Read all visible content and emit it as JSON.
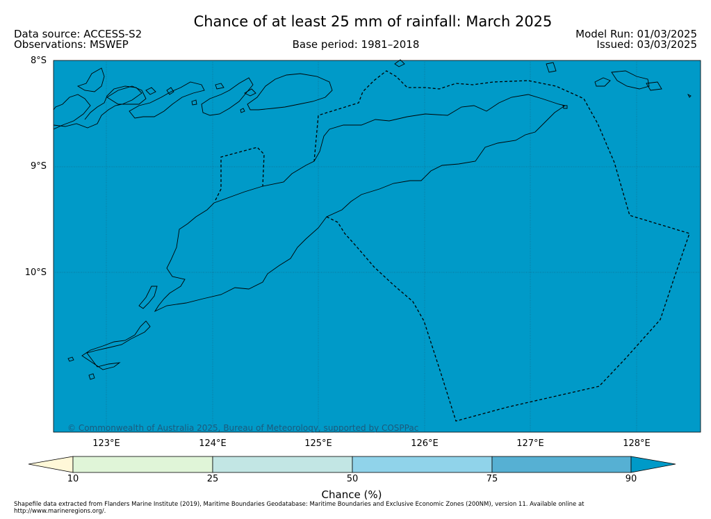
{
  "title": "Chance of at least 25 mm of rainfall: March 2025",
  "header": {
    "data_source": "Data source: ACCESS-S2",
    "observations": "Observations: MSWEP",
    "base_period": "Base period: 1981–2018",
    "model_run": "Model Run: 01/03/2025",
    "issued": "Issued: 03/03/2025"
  },
  "map": {
    "background_color": "#009ac8",
    "lat_labels": [
      "8°S",
      "9°S",
      "10°S"
    ],
    "lon_labels": [
      "123°E",
      "124°E",
      "125°E",
      "126°E",
      "127°E",
      "128°E"
    ],
    "copyright": "© Commonwealth of Australia 2025, Bureau of Meteorology, supported by COSPPac"
  },
  "colorbar": {
    "label": "Chance (%)",
    "ticks": [
      "10",
      "25",
      "50",
      "75",
      "90"
    ],
    "colors": [
      "#fff8d8",
      "#e0f5d8",
      "#c2e6e4",
      "#90d3ea",
      "#56b0d3",
      "#009ac8"
    ]
  },
  "footer": {
    "credit": "Shapefile data extracted from Flanders Marine Institute (2019), Maritime Boundaries Geodatabase: Maritime Boundaries and Exclusive Economic Zones (200NM), version 11. Available online at http://www.marineregions.org/."
  }
}
